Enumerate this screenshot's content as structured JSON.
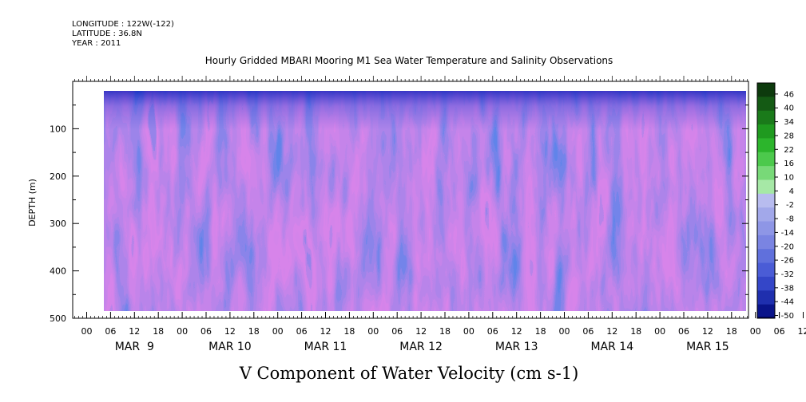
{
  "header": {
    "longitude": "LONGITUDE : 122W(-122)",
    "latitude": "LATITUDE : 36.8N",
    "year": "YEAR : 2011"
  },
  "title": "Hourly Gridded MBARI Mooring M1 Sea Water Temperature and Salinity Observations",
  "bottom_title": "V Component of Water Velocity (cm s-1)",
  "chart_data": {
    "type": "heatmap",
    "xlabel": "",
    "ylabel": "DEPTH (m)",
    "x_hour_ticks": [
      "00",
      "06",
      "12",
      "18",
      "00",
      "06",
      "12",
      "18",
      "00",
      "06",
      "12",
      "18",
      "00",
      "06",
      "12",
      "18",
      "00",
      "06",
      "12",
      "18",
      "00",
      "06",
      "12",
      "18",
      "00",
      "06",
      "12",
      "18",
      "00",
      "06",
      "12",
      "18"
    ],
    "x_day_labels": [
      "MAR  9",
      "MAR 10",
      "MAR 11",
      "MAR 12",
      "MAR 13",
      "MAR 14",
      "MAR 15"
    ],
    "y_ticks": [
      "100",
      "200",
      "300",
      "400",
      "500"
    ],
    "ylim": [
      500,
      0
    ],
    "data_depth_range": [
      20,
      490
    ],
    "colorbar_levels": [
      "46",
      "40",
      "34",
      "28",
      "22",
      "16",
      "10",
      "4",
      "-2",
      "-8",
      "-14",
      "-20",
      "-26",
      "-32",
      "-38",
      "-44",
      "-50"
    ],
    "colorbar_colors": [
      "#0d3a0d",
      "#145a14",
      "#1a7a1a",
      "#1f9a1f",
      "#2cb52c",
      "#4cc94c",
      "#78d978",
      "#a6e8a6",
      "#b8bcef",
      "#a2a8ea",
      "#8e96e6",
      "#7a84e2",
      "#6070dc",
      "#4a5cd6",
      "#3446c8",
      "#1f2fae",
      "#0a148a"
    ],
    "colorbar_bottom_color": "#00055a",
    "plot_background": "#ffffff"
  }
}
